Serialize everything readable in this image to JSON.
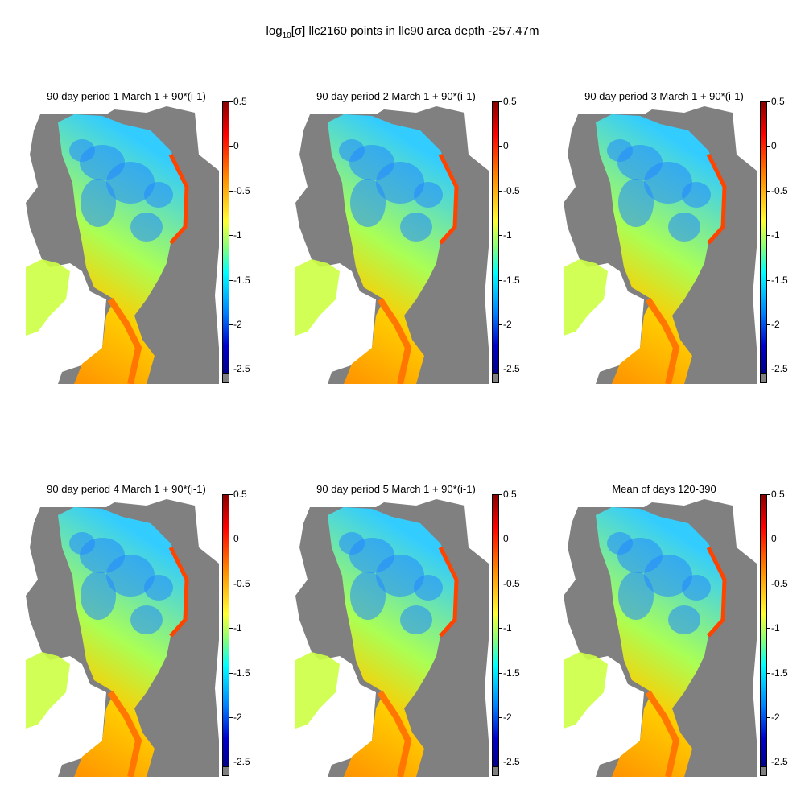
{
  "figure": {
    "title_prefix": "log",
    "title_sub": "10",
    "title_rest": "[σ]  llc2160 points in llc90 area   depth -257.47m"
  },
  "colors": {
    "land": "#808080",
    "ocean_empty": "#ffffff",
    "colormap": "jet"
  },
  "chart_data": {
    "type": "heatmap",
    "colormap": "jet",
    "quantity": "log10[σ]",
    "depth_label": "depth -257.47m",
    "colorbar_ticks": [
      "0.5",
      "0",
      "-0.5",
      "-1",
      "-1.5",
      "-2",
      "-2.5"
    ],
    "colorbar_range": [
      -2.55,
      0.5
    ],
    "land_color": "gray",
    "panels": [
      {
        "title": "90 day period 1 March 1 + 90*(i-1)"
      },
      {
        "title": "90 day period 2 March 1 + 90*(i-1)"
      },
      {
        "title": "90 day period 3 March 1 + 90*(i-1)"
      },
      {
        "title": "90 day period 4 March 1 + 90*(i-1)"
      },
      {
        "title": "90 day period 5 March 1 + 90*(i-1)"
      },
      {
        "title": "Mean of days 120-390"
      }
    ]
  }
}
